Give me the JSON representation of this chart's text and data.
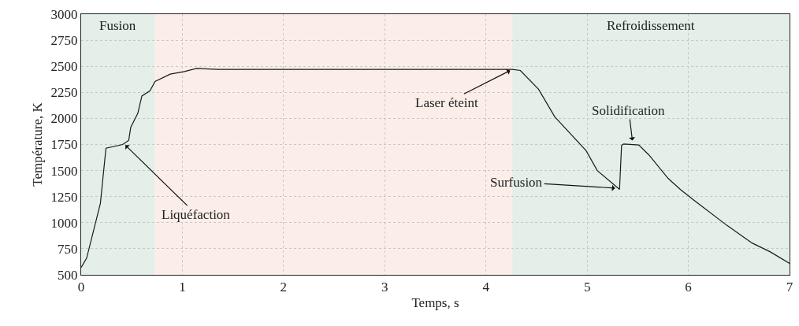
{
  "chart_data": {
    "type": "line",
    "xlabel": "Temps, s",
    "ylabel": "Température, K",
    "x": [
      0,
      0.054,
      0.19,
      0.245,
      0.41,
      0.47,
      0.49,
      0.56,
      0.6,
      0.68,
      0.73,
      0.88,
      1.02,
      1.14,
      1.35,
      2,
      3,
      4,
      4.26,
      4.34,
      4.52,
      4.68,
      4.99,
      5.1,
      5.32,
      5.34,
      5.36,
      5.51,
      5.61,
      5.8,
      5.92,
      6.05,
      6.38,
      6.63,
      6.81,
      7
    ],
    "series": [
      {
        "color": "#1a1a1a",
        "values": [
          570,
          660,
          1185,
          1714,
          1750,
          1790,
          1915,
          2050,
          2215,
          2265,
          2355,
          2425,
          2450,
          2480,
          2470,
          2470,
          2470,
          2470,
          2470,
          2460,
          2280,
          2015,
          1690,
          1500,
          1320,
          1740,
          1755,
          1745,
          1650,
          1425,
          1320,
          1220,
          975,
          805,
          720,
          610
        ]
      }
    ],
    "xlim": [
      0,
      7
    ],
    "xticks": [
      0,
      1,
      2,
      3,
      4,
      5,
      6,
      7
    ],
    "ylim": [
      500,
      3000
    ],
    "yticks": [
      500,
      750,
      1000,
      1250,
      1500,
      1750,
      2000,
      2250,
      2500,
      2750,
      3000
    ],
    "grid": true,
    "marker": "none",
    "line_style": "solid",
    "bands": [
      {
        "axis": "x",
        "from": 0,
        "to": 0.73,
        "label": "Fusion",
        "color": "#e3efe8"
      },
      {
        "axis": "x",
        "from": 0.73,
        "to": 4.26,
        "label": null,
        "color": "#fbeee9"
      },
      {
        "axis": "x",
        "from": 4.26,
        "to": 7,
        "label": "Refroidissement",
        "color": "#e3efe8"
      }
    ],
    "annotations": [
      {
        "text": "Liquéfaction",
        "x": 0.42,
        "y": 1760
      },
      {
        "text": "Laser éteint",
        "x": 4.26,
        "y": 2470
      },
      {
        "text": "Surfusion",
        "x": 5.3,
        "y": 1330
      },
      {
        "text": "Solidification",
        "x": 5.45,
        "y": 1765
      }
    ]
  }
}
